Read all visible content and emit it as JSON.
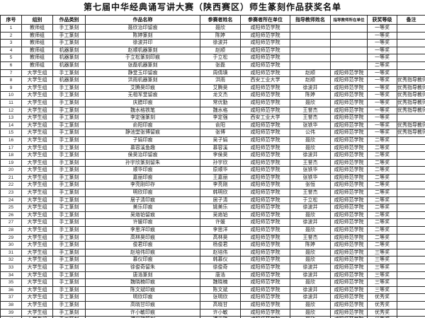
{
  "title": "第七届中华经典诵写讲大赛（陕西赛区）师生篆刻作品获奖名单",
  "table": {
    "headers": [
      "序号",
      "组别",
      "作品类别",
      "作品名称",
      "参赛者姓名",
      "参赛者所在单位",
      "指导教师姓名",
      "指导教师所在单位",
      "获奖等级",
      "备注"
    ],
    "rows": [
      [
        "1",
        "教师组",
        "手工篆刻",
        "聂欣治印留痕",
        "聂欣",
        "咸阳师范学院",
        "",
        "",
        "一等奖",
        ""
      ],
      [
        "2",
        "教师组",
        "手工篆刻",
        "陈婷篆刻",
        "陈婷",
        "咸阳师范学院",
        "",
        "",
        "一等奖",
        ""
      ],
      [
        "3",
        "教师组",
        "手工篆刻",
        "徐波并印",
        "徐波并",
        "咸阳师范学院",
        "",
        "",
        "一等奖",
        ""
      ],
      [
        "4",
        "教师组",
        "机器篆刻",
        "赵顺机器篆刻",
        "赵顺",
        "咸阳师范学院",
        "",
        "",
        "一等奖",
        ""
      ],
      [
        "5",
        "教师组",
        "机器篆刻",
        "于立松篆刻印痕",
        "于立松",
        "咸阳师范学院",
        "",
        "",
        "一等奖",
        ""
      ],
      [
        "6",
        "教师组",
        "机器篆刻",
        "张磊机器篆刻",
        "张磊",
        "咸阳师范学院",
        "",
        "",
        "二等奖",
        ""
      ],
      [
        "7",
        "大学生组",
        "手工篆刻",
        "静堂玉印留痕",
        "周倩璜",
        "咸阳师范学院",
        "赵顺",
        "咸阳师范学院",
        "一等奖",
        ""
      ],
      [
        "8",
        "大学生组",
        "机器篆刻",
        "洪雨机器篆刻",
        "洪雨",
        "西安工业大学",
        "赵顺",
        "咸阳师范学院",
        "一等奖",
        "优秀指导教师"
      ],
      [
        "9",
        "大学生组",
        "手工篆刻",
        "艾腾昊印痕",
        "艾腾昊",
        "咸阳师范学院",
        "徐波并",
        "咸阳师范学院",
        "一等奖",
        "优秀指导教师"
      ],
      [
        "10",
        "大学生组",
        "手工篆刻",
        "无相军堂留痕",
        "龙文杰",
        "咸阳师范学院",
        "陈婷",
        "咸阳师范学院",
        "一等奖",
        "优秀指导教师"
      ],
      [
        "11",
        "大学生组",
        "手工篆刻",
        "庆腊印痕",
        "常优勤",
        "咸阳师范学院",
        "聂欣",
        "咸阳师范学院",
        "一等奖",
        "优秀指导教师"
      ],
      [
        "12",
        "大学生组",
        "手工篆刻",
        "魏水格铁笔",
        "魏水格",
        "咸阳师范学院",
        "王誉杰",
        "咸阳师范学院",
        "一等奖",
        "优秀指导教师"
      ],
      [
        "13",
        "大学生组",
        "手工篆刻",
        "李定强篆刻",
        "李定强",
        "西安工业大学",
        "王誉杰",
        "咸阳师范学院",
        "一等奖",
        ""
      ],
      [
        "14",
        "大学生组",
        "手工篆刻",
        "俞阳印痕",
        "俞阳",
        "咸阳师范学院",
        "张铁华",
        "咸阳师范学院",
        "一等奖",
        "优秀指导教师"
      ],
      [
        "15",
        "大学生组",
        "手工篆刻",
        "静池堂张博留痕",
        "张博",
        "咸阳师范学院",
        "公伟",
        "咸阳师范学院",
        "一等奖",
        "优秀指导教师"
      ],
      [
        "16",
        "大学生组",
        "手工篆刻",
        "子娟印痕",
        "吴子娟",
        "咸阳师范学院",
        "聂欣",
        "咸阳师范学院",
        "二等奖",
        ""
      ],
      [
        "17",
        "大学生组",
        "手工篆刻",
        "慕容溪鱼趣",
        "慕容溪",
        "咸阳师范学院",
        "聂欣",
        "咸阳师范学院",
        "二等奖",
        ""
      ],
      [
        "18",
        "大学生组",
        "手工篆刻",
        "侯昊治印留痕",
        "李侯昊",
        "咸阳师范学院",
        "徐波并",
        "咸阳师范学院",
        "二等奖",
        ""
      ],
      [
        "19",
        "大学生组",
        "手工篆刻",
        "孙宇欣篆刻留朱",
        "孙宇欣",
        "咸阳师范学院",
        "王誉杰",
        "咸阳师范学院",
        "二等奖",
        ""
      ],
      [
        "20",
        "大学生组",
        "手工篆刻",
        "顺华印痕",
        "原顺华",
        "咸阳师范学院",
        "张铁华",
        "咸阳师范学院",
        "二等奖",
        ""
      ],
      [
        "21",
        "大学生组",
        "手工篆刻",
        "嘉丽印痕",
        "王嘉丽",
        "咸阳师范学院",
        "张铁华",
        "咸阳师范学院",
        "二等奖",
        ""
      ],
      [
        "22",
        "大学生组",
        "手工篆刻",
        "李亮刚印存",
        "李亮刚",
        "咸阳师范学院",
        "张恒",
        "咸阳师范学院",
        "二等奖",
        ""
      ],
      [
        "23",
        "大学生组",
        "手工篆刻",
        "明欣印痕",
        "韩明欣",
        "咸阳师范学院",
        "王誉杰",
        "咸阳师范学院",
        "二等奖",
        ""
      ],
      [
        "24",
        "大学生组",
        "手工篆刻",
        "居子清印痕",
        "居子清",
        "咸阳师范学院",
        "于立松",
        "咸阳师范学院",
        "二等奖",
        ""
      ],
      [
        "25",
        "大学生组",
        "手工篆刻",
        "美乐印痕",
        "姚美乐",
        "咸阳师范学院",
        "徐波并",
        "咸阳师范学院",
        "二等奖",
        ""
      ],
      [
        "26",
        "大学生组",
        "手工篆刻",
        "吴烙铂留痕",
        "吴烙铂",
        "咸阳师范学院",
        "聂欣",
        "咸阳师范学院",
        "二等奖",
        ""
      ],
      [
        "27",
        "大学生组",
        "手工篆刻",
        "许媛印痕",
        "许媛",
        "咸阳师范学院",
        "徐波并",
        "咸阳师范学院",
        "二等奖",
        ""
      ],
      [
        "28",
        "大学生组",
        "手工篆刻",
        "李思洋印痕",
        "李思洋",
        "咸阳师范学院",
        "聂欣",
        "咸阳师范学院",
        "二等奖",
        ""
      ],
      [
        "29",
        "大学生组",
        "手工篆刻",
        "高林昊印痕",
        "高林昊",
        "咸阳师范学院",
        "王誉杰",
        "咸阳师范学院",
        "二等奖",
        ""
      ],
      [
        "30",
        "大学生组",
        "手工篆刻",
        "俊君印痕",
        "杨俊君",
        "咸阳师范学院",
        "陈婷",
        "咸阳师范学院",
        "二等奖",
        ""
      ],
      [
        "31",
        "大学生组",
        "手工篆刻",
        "赵培伟印痕",
        "赵培伟",
        "咸阳师范学院",
        "聂欣",
        "咸阳师范学院",
        "三等奖",
        ""
      ],
      [
        "32",
        "大学生组",
        "手工篆刻",
        "慕仪印痕",
        "韩慕仪",
        "咸阳师范学院",
        "聂欣",
        "咸阳师范学院",
        "三等奖",
        ""
      ],
      [
        "33",
        "大学生组",
        "手工篆刻",
        "徐俊奇留朱",
        "徐俊奇",
        "咸阳师范学院",
        "徐波并",
        "咸阳师范学院",
        "三等奖",
        ""
      ],
      [
        "34",
        "大学生组",
        "手工篆刻",
        "唐浩篆刻",
        "唐浩",
        "咸阳师范学院",
        "徐波并",
        "咸阳师范学院",
        "三等奖",
        ""
      ],
      [
        "35",
        "大学生组",
        "手工篆刻",
        "魏晓楠印痕",
        "魏晓楠",
        "咸阳师范学院",
        "聂欣",
        "咸阳师范学院",
        "三等奖",
        ""
      ],
      [
        "36",
        "大学生组",
        "手工篆刻",
        "陈文斌印痕",
        "陈文斌",
        "咸阳师范学院",
        "徐波并",
        "咸阳师范学院",
        "三等奖",
        ""
      ],
      [
        "37",
        "大学生组",
        "手工篆刻",
        "明欣印痕",
        "张明欣",
        "咸阳师范学院",
        "徐波并",
        "咸阳师范学院",
        "优秀奖",
        ""
      ],
      [
        "38",
        "大学生组",
        "手工篆刻",
        "高晓甘印痕",
        "高晓甘",
        "咸阳师范学院",
        "聂欣",
        "咸阳师范学院",
        "优秀奖",
        ""
      ],
      [
        "39",
        "大学生组",
        "手工篆刻",
        "许小敏印痕",
        "许小敏",
        "咸阳师范学院",
        "聂欣",
        "咸阳师范学院",
        "优秀奖",
        ""
      ],
      [
        "40",
        "大学生组",
        "手工篆刻",
        "谭优雅篆刻",
        "谭优雅",
        "咸阳师范学院",
        "聂欣",
        "咸阳师范学院",
        "优秀奖",
        ""
      ]
    ]
  }
}
